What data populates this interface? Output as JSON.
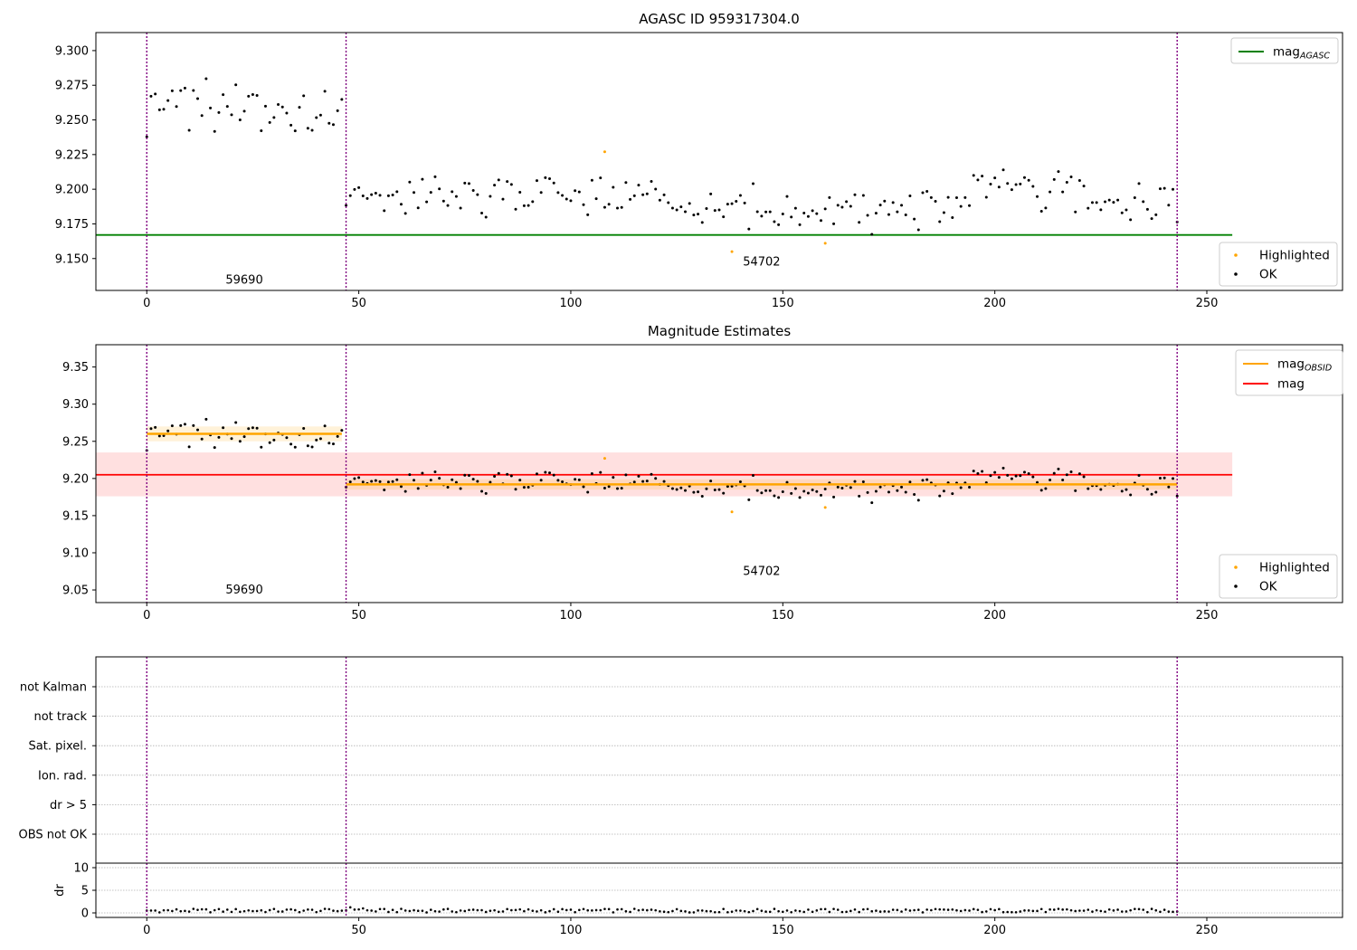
{
  "chart_data": [
    {
      "type": "scatter",
      "title": "AGASC ID 959317304.0",
      "xlim": [
        -12,
        282
      ],
      "ylim": [
        9.127,
        9.313
      ],
      "xticks": [
        0,
        50,
        100,
        150,
        200,
        250
      ],
      "yticks": [
        9.15,
        9.175,
        9.2,
        9.225,
        9.25,
        9.275,
        9.3
      ],
      "ytick_labels": [
        "9.150",
        "9.175",
        "9.200",
        "9.225",
        "9.250",
        "9.275",
        "9.300"
      ],
      "obs_boundaries": [
        0,
        47,
        243
      ],
      "annotations": [
        {
          "text": "59690",
          "x": 23,
          "y": 9.132
        },
        {
          "text": "54702",
          "x": 145,
          "y": 9.145
        }
      ],
      "reference_line": {
        "name": "mag_AGASC",
        "y": 9.167,
        "x_range": [
          -12,
          256
        ],
        "color": "#008000"
      },
      "highlighted": [
        [
          108,
          9.227
        ],
        [
          138,
          9.155
        ],
        [
          160,
          9.161
        ]
      ],
      "legend_top": [
        {
          "label": "mag",
          "subscript": "AGASC",
          "color": "#008000"
        }
      ],
      "legend_bottom": [
        {
          "label": "Highlighted",
          "color": "#FFA500"
        },
        {
          "label": "OK",
          "color": "#000000"
        }
      ]
    },
    {
      "type": "scatter",
      "title": "Magnitude Estimates",
      "xlim": [
        -12,
        282
      ],
      "ylim": [
        9.033,
        9.38
      ],
      "xticks": [
        0,
        50,
        100,
        150,
        200,
        250
      ],
      "yticks": [
        9.05,
        9.1,
        9.15,
        9.2,
        9.25,
        9.3,
        9.35
      ],
      "ytick_labels": [
        "9.05",
        "9.10",
        "9.15",
        "9.20",
        "9.25",
        "9.30",
        "9.35"
      ],
      "obs_boundaries": [
        0,
        47,
        243
      ],
      "annotations": [
        {
          "text": "59690",
          "x": 23,
          "y": 9.045
        },
        {
          "text": "54702",
          "x": 145,
          "y": 9.07
        }
      ],
      "mag_line": {
        "y": 9.205,
        "band": [
          9.176,
          9.235
        ],
        "x_range": [
          -12,
          256
        ],
        "color": "#FF0000"
      },
      "obsid_segments": [
        {
          "x_range": [
            0,
            46
          ],
          "y": 9.26,
          "band": [
            9.25,
            9.27
          ]
        },
        {
          "x_range": [
            47,
            243
          ],
          "y": 9.192,
          "band": [
            9.185,
            9.199
          ]
        }
      ],
      "highlighted": [
        [
          108,
          9.227
        ],
        [
          138,
          9.155
        ],
        [
          160,
          9.161
        ]
      ],
      "legend_top": [
        {
          "label": "mag",
          "subscript": "OBSID",
          "color": "#FFA500"
        },
        {
          "label": "mag",
          "subscript": "",
          "color": "#FF0000"
        }
      ],
      "legend_bottom": [
        {
          "label": "Highlighted",
          "color": "#FFA500"
        },
        {
          "label": "OK",
          "color": "#000000"
        }
      ]
    },
    {
      "type": "scatter",
      "title": "",
      "xlim": [
        -12,
        282
      ],
      "xticks": [
        0,
        50,
        100,
        150,
        200,
        250
      ],
      "obs_boundaries": [
        0,
        47,
        243
      ],
      "flag_categories": [
        "not Kalman",
        "not track",
        "Sat. pixel.",
        "Ion. rad.",
        "dr > 5",
        "OBS not OK"
      ],
      "dr_ylabel": "dr",
      "dr_ylim": [
        -1,
        11
      ],
      "dr_yticks": [
        0,
        5,
        10
      ]
    }
  ]
}
